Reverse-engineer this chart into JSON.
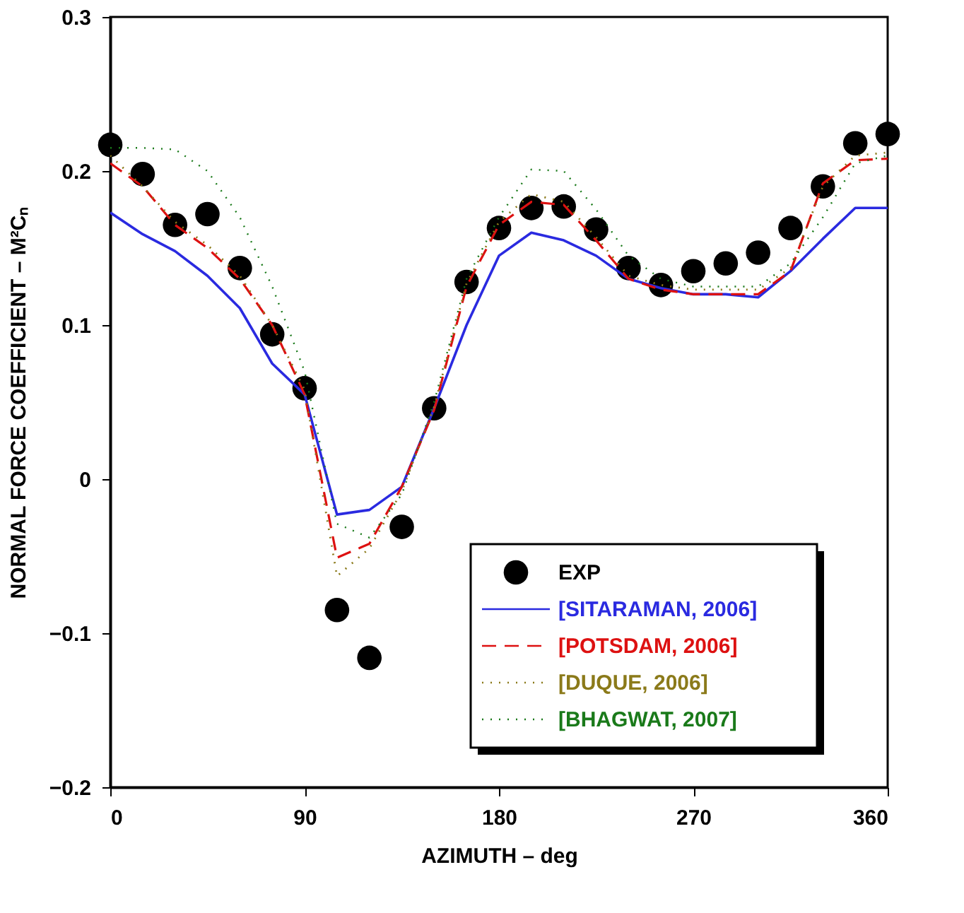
{
  "chart_data": {
    "type": "line",
    "xlabel": "AZIMUTH – deg",
    "ylabel": "NORMAL FORCE COEFFICIENT – M²Cₙ",
    "x": [
      0,
      15,
      30,
      45,
      60,
      75,
      90,
      105,
      120,
      135,
      150,
      165,
      180,
      195,
      210,
      225,
      240,
      255,
      270,
      285,
      300,
      315,
      330,
      345,
      360
    ],
    "xlim": [
      0,
      360
    ],
    "xticks": [
      0,
      90,
      180,
      270,
      360
    ],
    "ylim": [
      -0.2,
      0.3
    ],
    "yticks": [
      -0.2,
      -0.1,
      0,
      0.1,
      0.2,
      0.3
    ],
    "grid": false,
    "legend": "bottom right",
    "series": [
      {
        "name": "EXP",
        "type": "scatter",
        "marker": "circle",
        "color": "#000000",
        "values": [
          0.217,
          0.198,
          0.165,
          0.172,
          0.137,
          0.094,
          0.059,
          -0.085,
          -0.116,
          -0.031,
          0.046,
          0.128,
          0.163,
          0.176,
          0.177,
          0.162,
          0.137,
          0.126,
          0.135,
          0.14,
          0.147,
          0.163,
          0.19,
          0.218,
          0.224
        ]
      },
      {
        "name": "[SITARAMAN, 2006]",
        "type": "line",
        "line_style": "solid",
        "color": "#2a2ae0",
        "values": [
          0.173,
          0.159,
          0.148,
          0.132,
          0.111,
          0.075,
          0.055,
          -0.023,
          -0.02,
          -0.005,
          0.046,
          0.1,
          0.145,
          0.16,
          0.155,
          0.145,
          0.13,
          0.124,
          0.12,
          0.12,
          0.118,
          0.135,
          0.156,
          0.176,
          0.176
        ]
      },
      {
        "name": "[POTSDAM, 2006]",
        "type": "line",
        "line_style": "dashed",
        "color": "#dd1111",
        "values": [
          0.205,
          0.19,
          0.165,
          0.15,
          0.13,
          0.1,
          0.055,
          -0.051,
          -0.042,
          -0.005,
          0.045,
          0.125,
          0.165,
          0.18,
          0.178,
          0.155,
          0.13,
          0.123,
          0.12,
          0.12,
          0.12,
          0.135,
          0.192,
          0.207,
          0.208
        ]
      },
      {
        "name": "[DUQUE, 2006]",
        "type": "line",
        "line_style": "dotted",
        "color": "#8b7a1a",
        "values": [
          0.21,
          0.19,
          0.167,
          0.152,
          0.132,
          0.1,
          0.058,
          -0.063,
          -0.045,
          -0.008,
          0.047,
          0.127,
          0.167,
          0.185,
          0.18,
          0.157,
          0.132,
          0.126,
          0.123,
          0.123,
          0.123,
          0.137,
          0.19,
          0.21,
          0.212
        ]
      },
      {
        "name": "[BHAGWAT, 2007]",
        "type": "line",
        "line_style": "dotted",
        "color": "#1a7a1a",
        "values": [
          0.215,
          0.215,
          0.214,
          0.2,
          0.17,
          0.125,
          0.07,
          -0.029,
          -0.038,
          -0.01,
          0.05,
          0.13,
          0.17,
          0.201,
          0.2,
          0.175,
          0.145,
          0.13,
          0.125,
          0.125,
          0.125,
          0.14,
          0.17,
          0.205,
          0.21
        ]
      }
    ]
  }
}
